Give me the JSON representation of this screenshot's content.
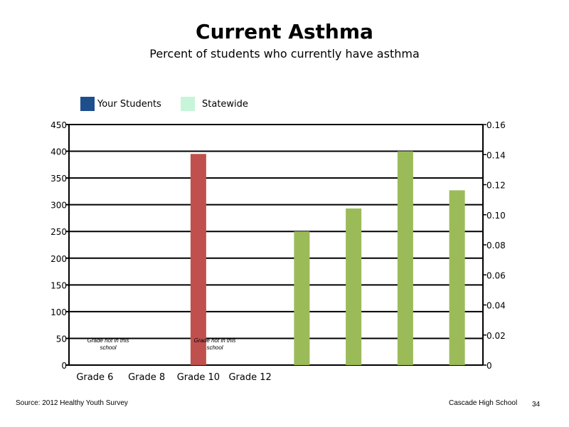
{
  "title": "Current Asthma",
  "subtitle": "Percent of students who currently have asthma",
  "footer": {
    "source": "Source: 2012 Healthy Youth Survey",
    "school": "Cascade High School",
    "page_number": "34"
  },
  "notes": [
    "Grade not in this school",
    "Grade not in this school"
  ],
  "colors": {
    "your_students": "#1f4e8c",
    "statewide": "#c7f5d9",
    "red_bar": "#c0504d",
    "green_bar": "#9bbb59"
  },
  "chart_data": {
    "type": "bar",
    "categories": [
      "Grade 6",
      "Grade 8",
      "Grade 10",
      "Grade 12",
      "",
      "",
      "",
      ""
    ],
    "series": [
      {
        "name": "Your Students",
        "color": "#1f4e8c",
        "values": [
          null,
          null,
          null,
          null,
          null,
          null,
          null,
          null
        ]
      },
      {
        "name": "Statewide",
        "color": "#c7f5d9",
        "values": [
          null,
          null,
          null,
          null,
          null,
          null,
          null,
          null
        ]
      }
    ],
    "extra_bars": [
      {
        "category_index": 2,
        "axis": "left",
        "value": 395,
        "color": "#c0504d"
      },
      {
        "category_index": 4,
        "axis": "left",
        "value": 250,
        "color": "#9bbb59"
      },
      {
        "category_index": 5,
        "axis": "left",
        "value": 293,
        "color": "#9bbb59"
      },
      {
        "category_index": 6,
        "axis": "left",
        "value": 400,
        "color": "#9bbb59"
      },
      {
        "category_index": 7,
        "axis": "left",
        "value": 327,
        "color": "#9bbb59"
      }
    ],
    "y_left": {
      "min": 0,
      "max": 450,
      "ticks": [
        "0",
        "50",
        "100",
        "150",
        "200",
        "250",
        "300",
        "350",
        "400",
        "450"
      ]
    },
    "y_right": {
      "min": 0,
      "max": 0.16,
      "ticks": [
        "0",
        "0.02",
        "0.04",
        "0.06",
        "0.08",
        "0.10",
        "0.12",
        "0.14",
        "0.16"
      ]
    },
    "grid": true,
    "legend_position": "top-left"
  }
}
